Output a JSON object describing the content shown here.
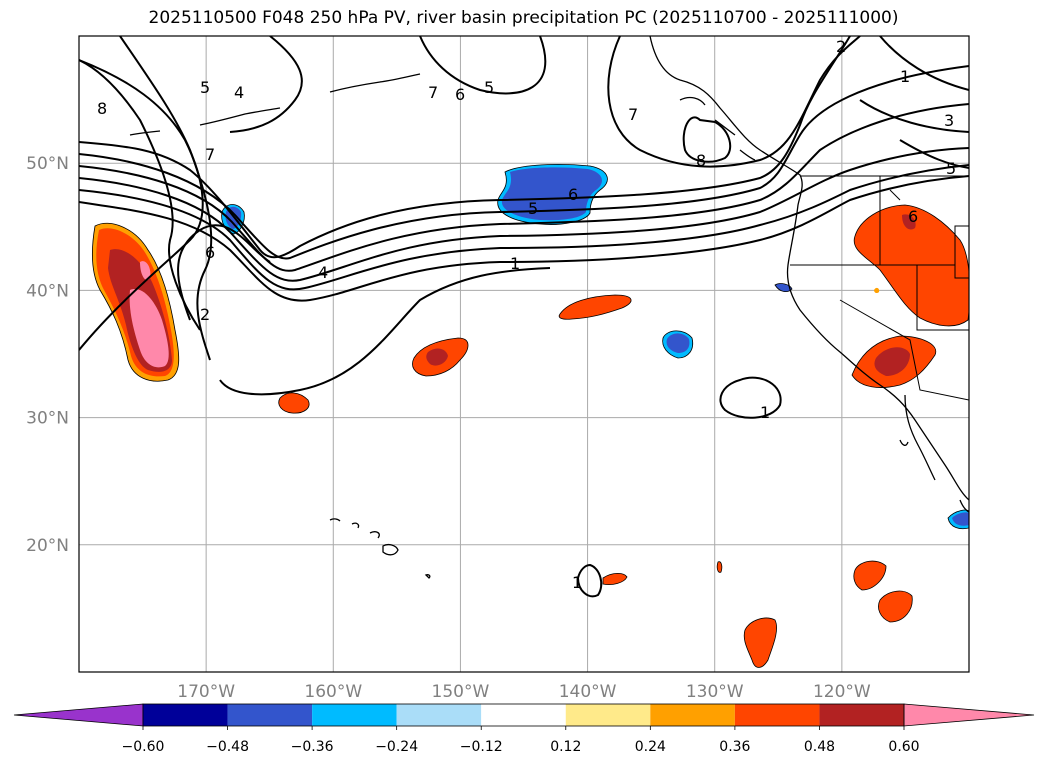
{
  "title": "2025110500 F048 250 hPa PV, river basin precipitation PC (2025110700 - 2025111000)",
  "map": {
    "lon_range": [
      -180,
      -110
    ],
    "lat_range": [
      10,
      60
    ],
    "lon_ticks": [
      {
        "value": -170,
        "label": "170°W"
      },
      {
        "value": -160,
        "label": "160°W"
      },
      {
        "value": -150,
        "label": "150°W"
      },
      {
        "value": -140,
        "label": "140°W"
      },
      {
        "value": -130,
        "label": "130°W"
      },
      {
        "value": -120,
        "label": "120°W"
      }
    ],
    "lat_ticks": [
      {
        "value": 20,
        "label": "20°N"
      },
      {
        "value": 30,
        "label": "30°N"
      },
      {
        "value": 40,
        "label": "40°N"
      },
      {
        "value": 50,
        "label": "50°N"
      }
    ],
    "grid": true
  },
  "colorbar": {
    "colors": [
      "#9933cc",
      "#000099",
      "#3355cc",
      "#00bbff",
      "#aaddf8",
      "#ffffff",
      "#ffea8a",
      "#ffa000",
      "#ff4500",
      "#b22222",
      "#ff88aa"
    ],
    "under_color": "#9933cc",
    "over_color": "#ff88aa",
    "tick_labels": [
      "−0.60",
      "−0.48",
      "−0.36",
      "−0.24",
      "−0.12",
      "0.12",
      "0.24",
      "0.36",
      "0.48",
      "0.60"
    ]
  },
  "contour_labels": [
    "8",
    "5",
    "4",
    "7",
    "6",
    "5",
    "7",
    "6",
    "4",
    "2",
    "1",
    "3",
    "5",
    "8",
    "6",
    "5",
    "1",
    "6",
    "2",
    "1",
    "1",
    "7"
  ]
}
